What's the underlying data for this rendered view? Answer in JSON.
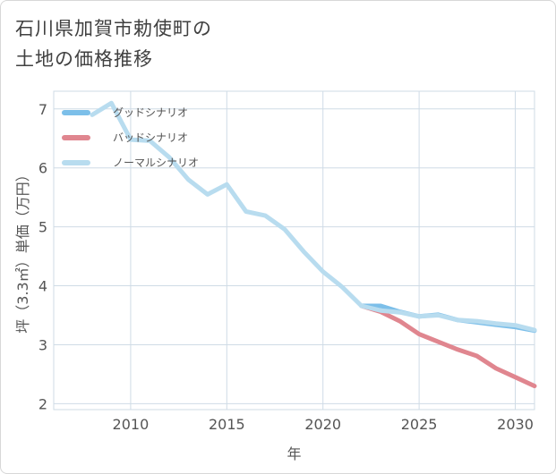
{
  "page": {
    "title_line1": "石川県加賀市勅使町の",
    "title_line2": "土地の価格推移"
  },
  "chart_data": {
    "type": "line",
    "xlabel": "年",
    "ylabel": "坪（3.3㎡）単価（万円）",
    "xlim": [
      2006,
      2031
    ],
    "ylim": [
      1.9,
      7.3
    ],
    "x_ticks": [
      2010,
      2015,
      2020,
      2025,
      2030
    ],
    "y_ticks": [
      2,
      3,
      4,
      5,
      6,
      7
    ],
    "grid": true,
    "legend_position": "top-left",
    "series": [
      {
        "name": "グッドシナリオ",
        "color": "#7cbfe9",
        "x": [
          2022,
          2023,
          2024,
          2025,
          2026,
          2027,
          2028,
          2029,
          2030,
          2031
        ],
        "y": [
          3.66,
          3.66,
          3.56,
          3.48,
          3.51,
          3.42,
          3.38,
          3.34,
          3.3,
          3.24
        ]
      },
      {
        "name": "バッドシナリオ",
        "color": "#e0868f",
        "x": [
          2022,
          2023,
          2024,
          2025,
          2026,
          2027,
          2028,
          2029,
          2030,
          2031
        ],
        "y": [
          3.66,
          3.56,
          3.4,
          3.18,
          3.05,
          2.92,
          2.81,
          2.6,
          2.45,
          2.3
        ]
      },
      {
        "name": "ノーマルシナリオ",
        "color": "#b8dcef",
        "x": [
          2008,
          2009,
          2010,
          2011,
          2012,
          2013,
          2014,
          2015,
          2016,
          2017,
          2018,
          2019,
          2020,
          2021,
          2022,
          2023,
          2024,
          2025,
          2026,
          2027,
          2028,
          2029,
          2030,
          2031
        ],
        "y": [
          6.9,
          7.1,
          6.48,
          6.46,
          6.18,
          5.8,
          5.55,
          5.72,
          5.26,
          5.19,
          4.96,
          4.58,
          4.24,
          3.98,
          3.66,
          3.58,
          3.55,
          3.48,
          3.5,
          3.42,
          3.4,
          3.36,
          3.33,
          3.25
        ]
      }
    ]
  }
}
